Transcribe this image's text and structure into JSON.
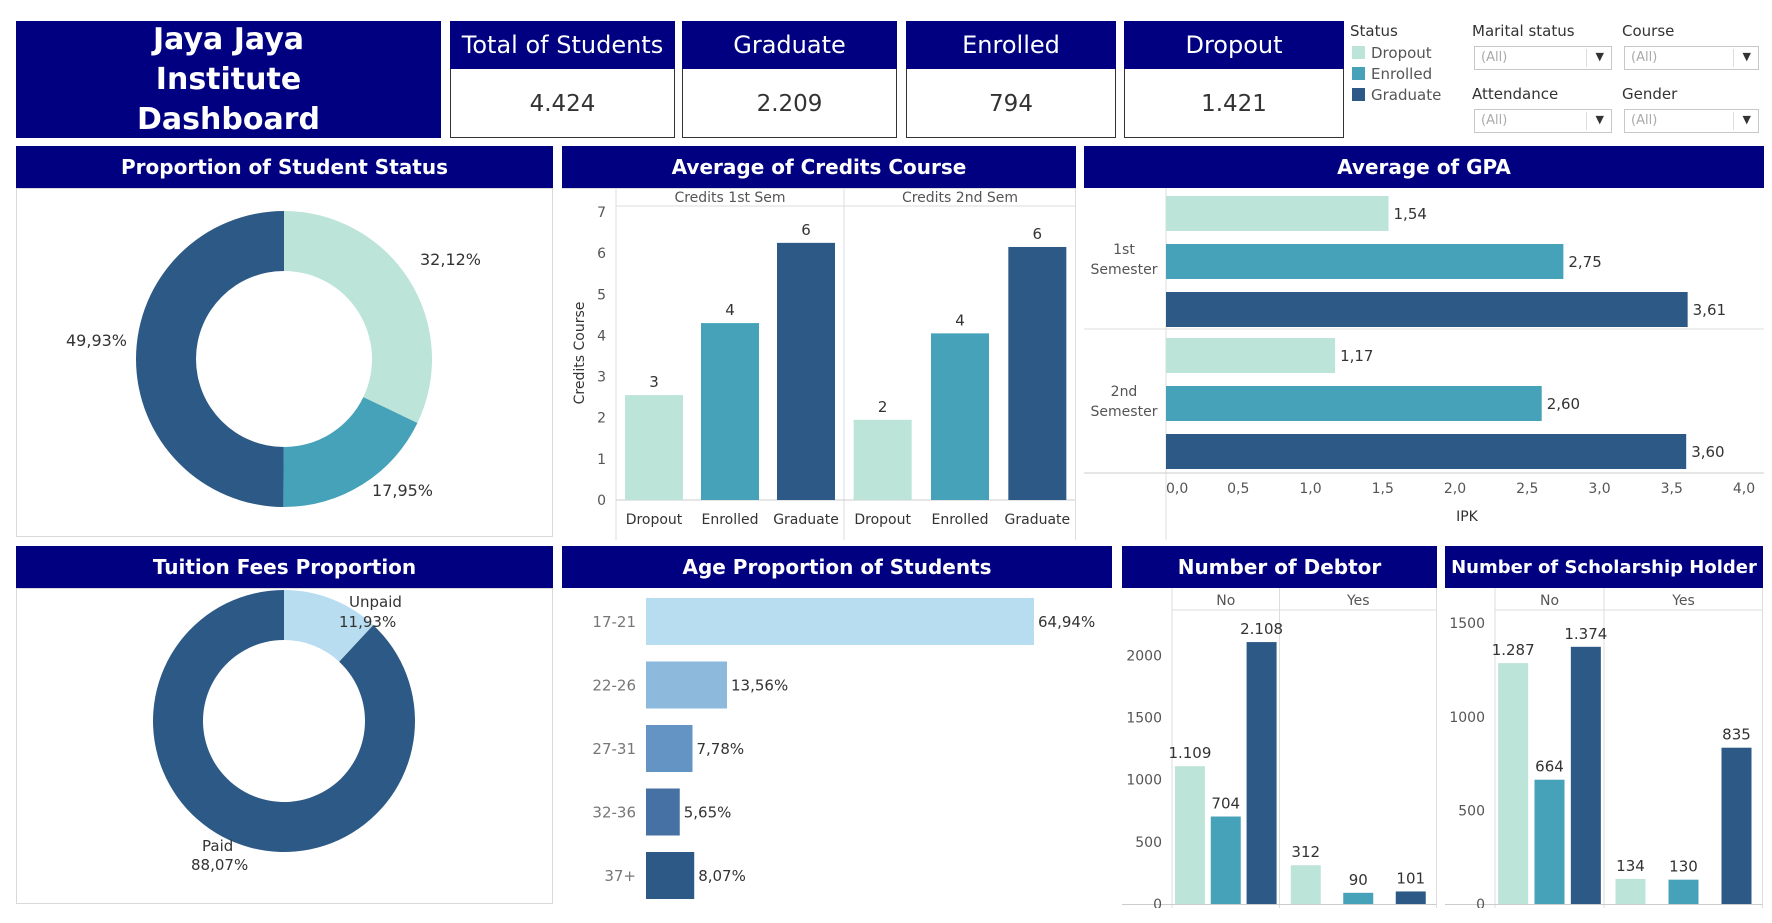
{
  "title": "Jaya Jaya Institute Dashboard",
  "colors": {
    "header": "#000080",
    "dropout": "#bce4d8",
    "enrolled": "#45a2b9",
    "graduate": "#2c5985",
    "age": [
      "#b9ddf0",
      "#8dbadc",
      "#6394c4",
      "#4671a5",
      "#2c5985"
    ]
  },
  "kpis": [
    {
      "label": "Total of Students",
      "value": "4.424"
    },
    {
      "label": "Graduate",
      "value": "2.209"
    },
    {
      "label": "Enrolled",
      "value": "794"
    },
    {
      "label": "Dropout",
      "value": "1.421"
    }
  ],
  "legend": {
    "title": "Status",
    "items": [
      "Dropout",
      "Enrolled",
      "Graduate"
    ]
  },
  "filters": [
    {
      "label": "Marital status",
      "value": "(All)"
    },
    {
      "label": "Course",
      "value": "(All)"
    },
    {
      "label": "Attendance",
      "value": "(All)"
    },
    {
      "label": "Gender",
      "value": "(All)"
    }
  ],
  "chart_data": [
    {
      "id": "status",
      "type": "pie",
      "title": "Proportion of Student Status",
      "categories": [
        "Dropout",
        "Enrolled",
        "Graduate"
      ],
      "values": [
        32.12,
        17.95,
        49.93
      ],
      "labels": [
        "32,12%",
        "17,95%",
        "49,93%"
      ]
    },
    {
      "id": "credits",
      "type": "bar",
      "title": "Average of Credits Course",
      "ylabel": "Credits Course",
      "ylim": [
        0,
        7
      ],
      "yticks": [
        "0",
        "1",
        "2",
        "3",
        "4",
        "5",
        "6",
        "7"
      ],
      "panels": [
        "Credits 1st Sem",
        "Credits 2nd Sem"
      ],
      "categories": [
        "Dropout",
        "Enrolled",
        "Graduate"
      ],
      "series": [
        {
          "values": [
            2.55,
            4.3,
            6.25
          ],
          "labels": [
            "3",
            "4",
            "6"
          ]
        },
        {
          "values": [
            1.95,
            4.05,
            6.15
          ],
          "labels": [
            "2",
            "4",
            "6"
          ]
        }
      ]
    },
    {
      "id": "gpa",
      "type": "bar",
      "title": "Average of GPA",
      "xlabel": "IPK",
      "xlim": [
        0,
        4
      ],
      "xticks": [
        "0,0",
        "0,5",
        "1,0",
        "1,5",
        "2,0",
        "2,5",
        "3,0",
        "3,5",
        "4,0"
      ],
      "groups": [
        "1st Semester",
        "2nd Semester"
      ],
      "categories": [
        "Dropout",
        "Enrolled",
        "Graduate"
      ],
      "series": [
        {
          "values": [
            1.54,
            2.75,
            3.61
          ],
          "labels": [
            "1,54",
            "2,75",
            "3,61"
          ]
        },
        {
          "values": [
            1.17,
            2.6,
            3.6
          ],
          "labels": [
            "1,17",
            "2,60",
            "3,60"
          ]
        }
      ]
    },
    {
      "id": "tuition",
      "type": "pie",
      "title": "Tuition Fees Proportion",
      "categories": [
        "Unpaid",
        "Paid"
      ],
      "values": [
        11.93,
        88.07
      ],
      "labels": [
        "11,93%",
        "88,07%"
      ],
      "colors": [
        "#b9ddf0",
        "#2c5985"
      ]
    },
    {
      "id": "age",
      "type": "bar",
      "title": "Age Proportion of Students",
      "categories": [
        "17-21",
        "22-26",
        "27-31",
        "32-36",
        "37+"
      ],
      "values": [
        64.94,
        13.56,
        7.78,
        5.65,
        8.07
      ],
      "labels": [
        "64,94%",
        "13,56%",
        "7,78%",
        "5,65%",
        "8,07%"
      ]
    },
    {
      "id": "debtor",
      "type": "bar",
      "title": "Number of Debtor",
      "ylim": [
        0,
        2350
      ],
      "yticks": [
        0,
        500,
        1000,
        1500,
        2000
      ],
      "panels": [
        "No",
        "Yes"
      ],
      "categories": [
        "Dropout",
        "Enrolled",
        "Graduate"
      ],
      "series": [
        {
          "values": [
            1109,
            704,
            2108
          ],
          "labels": [
            "1.109",
            "704",
            "2.108"
          ]
        },
        {
          "values": [
            312,
            90,
            101
          ],
          "labels": [
            "312",
            "90",
            "101"
          ]
        }
      ]
    },
    {
      "id": "scholar",
      "type": "bar",
      "title": "Number of Scholarship Holder",
      "ylim": [
        0,
        1560
      ],
      "yticks": [
        0,
        500,
        1000,
        1500
      ],
      "panels": [
        "No",
        "Yes"
      ],
      "categories": [
        "Dropout",
        "Enrolled",
        "Graduate"
      ],
      "series": [
        {
          "values": [
            1287,
            664,
            1374
          ],
          "labels": [
            "1.287",
            "664",
            "1.374"
          ]
        },
        {
          "values": [
            134,
            130,
            835
          ],
          "labels": [
            "134",
            "130",
            "835"
          ]
        }
      ]
    }
  ]
}
